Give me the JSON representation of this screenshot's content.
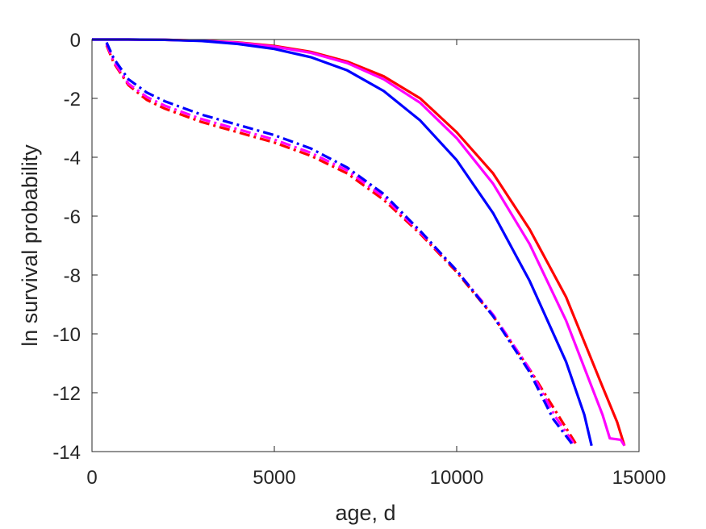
{
  "chart_data": {
    "type": "line",
    "title": "",
    "xlabel": "age, d",
    "ylabel": "ln survival probability",
    "xlim": [
      0,
      15000
    ],
    "ylim": [
      -14,
      0
    ],
    "xticks": [
      0,
      5000,
      10000,
      15000
    ],
    "yticks": [
      0,
      -2,
      -4,
      -6,
      -8,
      -10,
      -12,
      -14
    ],
    "xtick_labels": [
      "0",
      "5000",
      "10000",
      "15000"
    ],
    "ytick_labels": [
      "0",
      "-2",
      "-4",
      "-6",
      "-8",
      "-10",
      "-12",
      "-14"
    ],
    "grid": false,
    "legend": "none",
    "series": [
      {
        "color": "#ff0000",
        "style": "solid",
        "x": [
          0,
          1000,
          2000,
          3000,
          4000,
          5000,
          6000,
          7000,
          8000,
          9000,
          10000,
          11000,
          12000,
          13000,
          14000,
          14400,
          14600
        ],
        "y": [
          0,
          0,
          -0.01,
          -0.04,
          -0.1,
          -0.22,
          -0.42,
          -0.75,
          -1.25,
          -2.0,
          -3.15,
          -4.55,
          -6.45,
          -8.75,
          -11.8,
          -13.0,
          -13.8
        ]
      },
      {
        "color": "#ff00ff",
        "style": "solid",
        "x": [
          0,
          1000,
          2000,
          3000,
          4000,
          5000,
          6000,
          7000,
          8000,
          9000,
          10000,
          11000,
          12000,
          13000,
          14000,
          14200,
          14500,
          14600
        ],
        "y": [
          0,
          0,
          -0.01,
          -0.04,
          -0.11,
          -0.24,
          -0.45,
          -0.8,
          -1.35,
          -2.15,
          -3.35,
          -4.9,
          -6.95,
          -9.55,
          -12.75,
          -13.55,
          -13.6,
          -13.8
        ]
      },
      {
        "color": "#0000ff",
        "style": "solid",
        "x": [
          0,
          1000,
          2000,
          3000,
          4000,
          5000,
          6000,
          7000,
          8000,
          9000,
          10000,
          11000,
          12000,
          13000,
          13500,
          13700
        ],
        "y": [
          0,
          0,
          -0.01,
          -0.05,
          -0.15,
          -0.32,
          -0.6,
          -1.05,
          -1.75,
          -2.75,
          -4.1,
          -5.9,
          -8.2,
          -10.95,
          -12.75,
          -13.8
        ]
      },
      {
        "color": "#ff0000",
        "style": "dashdot",
        "x": [
          400,
          600,
          1000,
          1500,
          2000,
          3000,
          4000,
          5000,
          6000,
          7000,
          8000,
          9000,
          10000,
          11000,
          12000,
          12800,
          13300
        ],
        "y": [
          -0.2,
          -0.8,
          -1.55,
          -2.05,
          -2.35,
          -2.8,
          -3.15,
          -3.5,
          -3.95,
          -4.55,
          -5.45,
          -6.6,
          -7.9,
          -9.4,
          -11.2,
          -12.8,
          -13.8
        ]
      },
      {
        "color": "#ff00ff",
        "style": "dashdot",
        "x": [
          400,
          600,
          1000,
          1500,
          2000,
          3000,
          4000,
          5000,
          6000,
          7000,
          8000,
          9000,
          10000,
          11000,
          12000,
          12700,
          13250
        ],
        "y": [
          -0.15,
          -0.75,
          -1.5,
          -1.95,
          -2.25,
          -2.7,
          -3.05,
          -3.4,
          -3.85,
          -4.45,
          -5.35,
          -6.55,
          -7.85,
          -9.35,
          -11.2,
          -12.8,
          -13.8
        ]
      },
      {
        "color": "#0000ff",
        "style": "dashdot",
        "x": [
          400,
          600,
          1000,
          1500,
          2000,
          3000,
          4000,
          5000,
          6000,
          7000,
          8000,
          9000,
          10000,
          11000,
          12000,
          12650,
          13200
        ],
        "y": [
          -0.1,
          -0.65,
          -1.35,
          -1.8,
          -2.1,
          -2.55,
          -2.9,
          -3.25,
          -3.7,
          -4.35,
          -5.25,
          -6.5,
          -7.85,
          -9.4,
          -11.3,
          -12.9,
          -13.8
        ]
      }
    ]
  }
}
